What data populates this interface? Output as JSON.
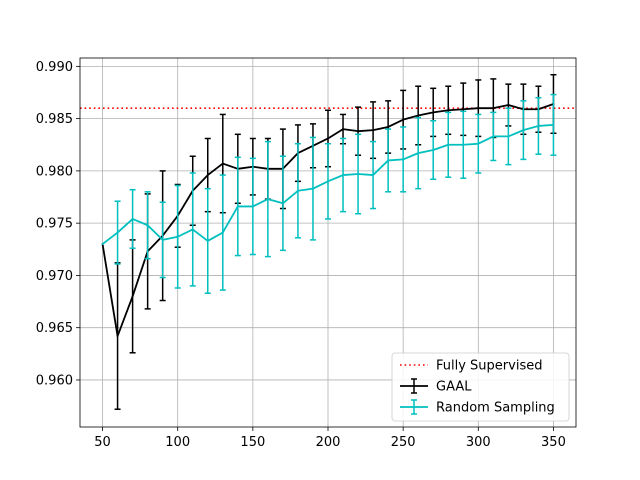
{
  "chart_data": {
    "type": "line",
    "title": "",
    "xlabel": "",
    "ylabel": "",
    "xlim": [
      35,
      365
    ],
    "ylim": [
      0.9555,
      0.9908
    ],
    "grid": true,
    "legend_position": "bottom-right",
    "x_ticks": [
      50,
      100,
      150,
      200,
      250,
      300,
      350
    ],
    "y_ticks": [
      0.96,
      0.965,
      0.97,
      0.975,
      0.98,
      0.985,
      0.99
    ],
    "x_tick_labels": [
      "50",
      "100",
      "150",
      "200",
      "250",
      "300",
      "350"
    ],
    "y_tick_labels": [
      "0.960",
      "0.965",
      "0.970",
      "0.975",
      "0.980",
      "0.985",
      "0.990"
    ],
    "reference_lines": [
      {
        "name": "Fully Supervised",
        "y": 0.986,
        "color": "#ff0000",
        "style": "dotted"
      }
    ],
    "x": [
      50,
      60,
      70,
      80,
      90,
      100,
      110,
      120,
      130,
      140,
      150,
      160,
      170,
      180,
      190,
      200,
      210,
      220,
      230,
      240,
      250,
      260,
      270,
      280,
      290,
      300,
      310,
      320,
      330,
      340,
      350
    ],
    "series": [
      {
        "name": "GAAL",
        "color": "#000000",
        "values": [
          0.973,
          0.9642,
          0.968,
          0.9723,
          0.9738,
          0.9757,
          0.9781,
          0.9796,
          0.9807,
          0.9802,
          0.9804,
          0.9802,
          0.9802,
          0.9817,
          0.9824,
          0.9831,
          0.984,
          0.9838,
          0.9839,
          0.9842,
          0.9849,
          0.9853,
          0.9856,
          0.9858,
          0.9859,
          0.986,
          0.986,
          0.9863,
          0.9859,
          0.9859,
          0.9864
        ],
        "errors": [
          0.0,
          0.007,
          0.0054,
          0.0055,
          0.0062,
          0.003,
          0.0033,
          0.0035,
          0.0047,
          0.0033,
          0.0027,
          0.0029,
          0.0038,
          0.0027,
          0.0021,
          0.0027,
          0.0014,
          0.0023,
          0.0027,
          0.0025,
          0.0028,
          0.0028,
          0.0023,
          0.0023,
          0.0025,
          0.0027,
          0.0028,
          0.002,
          0.0024,
          0.0022,
          0.0028
        ]
      },
      {
        "name": "Random Sampling",
        "color": "#00bfbf",
        "values": [
          0.973,
          0.9741,
          0.9754,
          0.9748,
          0.9734,
          0.9737,
          0.9744,
          0.9733,
          0.9741,
          0.9766,
          0.9766,
          0.9773,
          0.9769,
          0.9781,
          0.9783,
          0.979,
          0.9796,
          0.9797,
          0.9796,
          0.981,
          0.9811,
          0.9817,
          0.982,
          0.9825,
          0.9825,
          0.9826,
          0.9833,
          0.9833,
          0.9839,
          0.9843,
          0.9844
        ],
        "errors": [
          0.0,
          0.003,
          0.0028,
          0.0032,
          0.0036,
          0.0049,
          0.0054,
          0.005,
          0.0055,
          0.0047,
          0.0046,
          0.0055,
          0.0045,
          0.0045,
          0.0049,
          0.0036,
          0.0035,
          0.0038,
          0.0032,
          0.003,
          0.0031,
          0.0034,
          0.0028,
          0.0031,
          0.0032,
          0.0028,
          0.0023,
          0.0027,
          0.0028,
          0.0027,
          0.0029
        ]
      }
    ]
  }
}
